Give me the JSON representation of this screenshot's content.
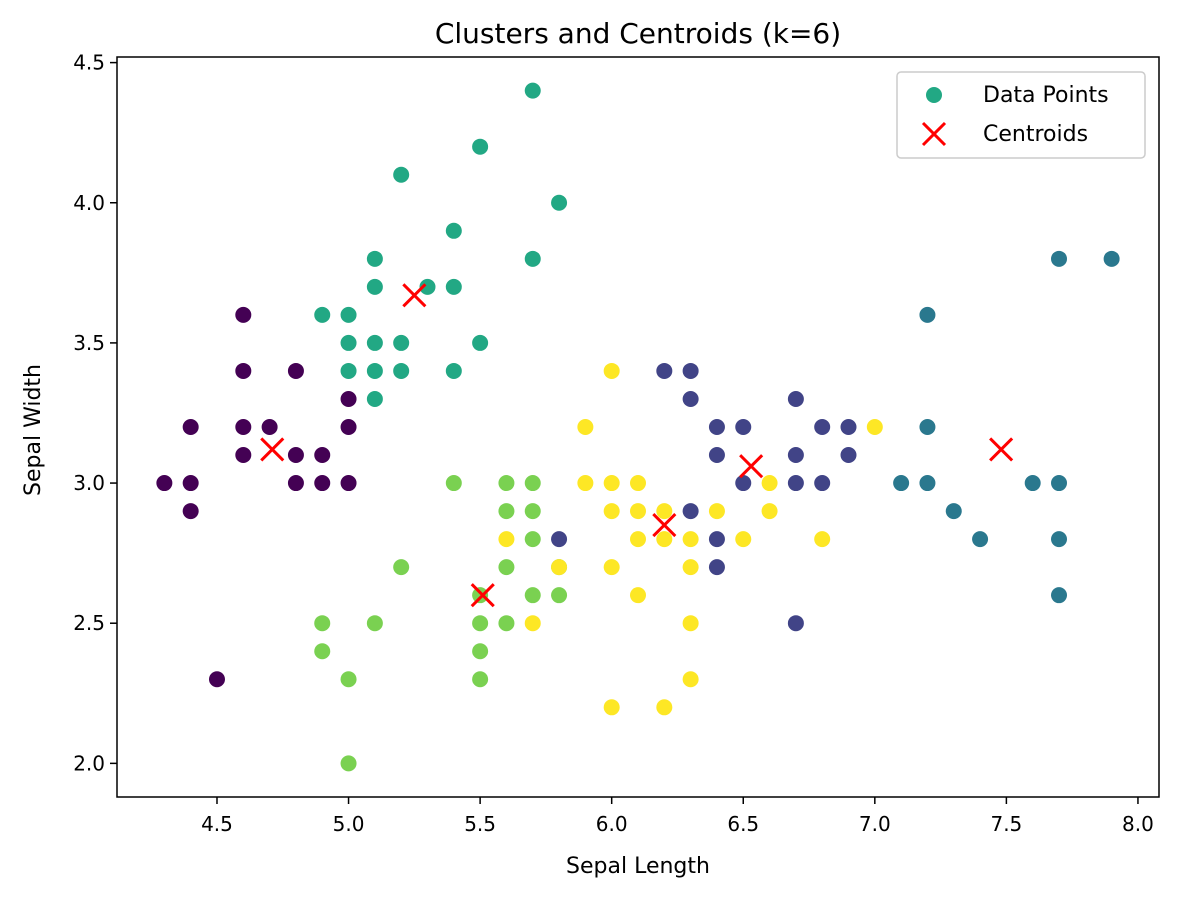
{
  "chart_data": {
    "type": "scatter",
    "title": "Clusters and Centroids (k=6)",
    "xlabel": "Sepal Length",
    "ylabel": "Sepal Width",
    "xlim": [
      4.12,
      8.08
    ],
    "ylim": [
      1.88,
      4.52
    ],
    "xticks": [
      "4.5",
      "5.0",
      "5.5",
      "6.0",
      "6.5",
      "7.0",
      "7.5",
      "8.0"
    ],
    "yticks": [
      "2.0",
      "2.5",
      "3.0",
      "3.5",
      "4.0",
      "4.5"
    ],
    "grid": false,
    "legend_position": "top-right",
    "legend": [
      "Data Points",
      "Centroids"
    ],
    "legend_marker_color": "#22a884",
    "cluster_colors": [
      "#440154",
      "#414487",
      "#2a788e",
      "#22a884",
      "#7ad151",
      "#fde725"
    ],
    "centroid_color": "#ff0000",
    "clusters": [
      {
        "points": [
          [
            4.3,
            3.0
          ],
          [
            4.4,
            3.2
          ],
          [
            4.4,
            3.0
          ],
          [
            4.4,
            2.9
          ],
          [
            4.5,
            2.3
          ],
          [
            4.6,
            3.6
          ],
          [
            4.6,
            3.4
          ],
          [
            4.6,
            3.2
          ],
          [
            4.6,
            3.1
          ],
          [
            4.7,
            3.2
          ],
          [
            4.8,
            3.4
          ],
          [
            4.8,
            3.1
          ],
          [
            4.8,
            3.0
          ],
          [
            4.9,
            3.1
          ],
          [
            4.9,
            3.0
          ],
          [
            5.0,
            3.3
          ],
          [
            5.0,
            3.2
          ],
          [
            5.0,
            3.0
          ]
        ]
      },
      {
        "points": [
          [
            5.8,
            2.8
          ],
          [
            6.2,
            3.4
          ],
          [
            6.3,
            3.4
          ],
          [
            6.3,
            3.3
          ],
          [
            6.3,
            2.9
          ],
          [
            6.4,
            3.2
          ],
          [
            6.4,
            3.1
          ],
          [
            6.4,
            2.8
          ],
          [
            6.4,
            2.7
          ],
          [
            6.5,
            3.2
          ],
          [
            6.5,
            3.0
          ],
          [
            6.7,
            3.3
          ],
          [
            6.7,
            3.1
          ],
          [
            6.7,
            3.0
          ],
          [
            6.7,
            2.5
          ],
          [
            6.8,
            3.2
          ],
          [
            6.8,
            3.0
          ],
          [
            6.9,
            3.2
          ],
          [
            6.9,
            3.1
          ]
        ]
      },
      {
        "points": [
          [
            7.1,
            3.0
          ],
          [
            7.2,
            3.6
          ],
          [
            7.2,
            3.2
          ],
          [
            7.2,
            3.0
          ],
          [
            7.3,
            2.9
          ],
          [
            7.4,
            2.8
          ],
          [
            7.6,
            3.0
          ],
          [
            7.7,
            3.8
          ],
          [
            7.7,
            3.0
          ],
          [
            7.7,
            2.8
          ],
          [
            7.7,
            2.6
          ],
          [
            7.9,
            3.8
          ]
        ]
      },
      {
        "points": [
          [
            4.9,
            3.6
          ],
          [
            5.0,
            3.6
          ],
          [
            5.0,
            3.5
          ],
          [
            5.0,
            3.4
          ],
          [
            5.1,
            3.8
          ],
          [
            5.1,
            3.7
          ],
          [
            5.1,
            3.5
          ],
          [
            5.1,
            3.4
          ],
          [
            5.1,
            3.3
          ],
          [
            5.2,
            4.1
          ],
          [
            5.2,
            3.5
          ],
          [
            5.2,
            3.4
          ],
          [
            5.3,
            3.7
          ],
          [
            5.4,
            3.9
          ],
          [
            5.4,
            3.7
          ],
          [
            5.4,
            3.4
          ],
          [
            5.5,
            4.2
          ],
          [
            5.5,
            3.5
          ],
          [
            5.7,
            4.4
          ],
          [
            5.7,
            3.8
          ],
          [
            5.8,
            4.0
          ]
        ]
      },
      {
        "points": [
          [
            4.9,
            2.5
          ],
          [
            4.9,
            2.4
          ],
          [
            5.0,
            2.3
          ],
          [
            5.0,
            2.0
          ],
          [
            5.1,
            2.5
          ],
          [
            5.2,
            2.7
          ],
          [
            5.4,
            3.0
          ],
          [
            5.5,
            2.6
          ],
          [
            5.5,
            2.5
          ],
          [
            5.5,
            2.4
          ],
          [
            5.5,
            2.3
          ],
          [
            5.6,
            3.0
          ],
          [
            5.6,
            2.9
          ],
          [
            5.6,
            2.7
          ],
          [
            5.6,
            2.5
          ],
          [
            5.7,
            3.0
          ],
          [
            5.7,
            2.9
          ],
          [
            5.7,
            2.8
          ],
          [
            5.7,
            2.6
          ],
          [
            5.8,
            2.7
          ],
          [
            5.8,
            2.6
          ]
        ]
      },
      {
        "points": [
          [
            5.6,
            2.8
          ],
          [
            5.7,
            2.5
          ],
          [
            5.8,
            2.7
          ],
          [
            5.9,
            3.2
          ],
          [
            5.9,
            3.0
          ],
          [
            6.0,
            3.4
          ],
          [
            6.0,
            3.0
          ],
          [
            6.0,
            2.9
          ],
          [
            6.0,
            2.7
          ],
          [
            6.0,
            2.2
          ],
          [
            6.1,
            3.0
          ],
          [
            6.1,
            2.9
          ],
          [
            6.1,
            2.8
          ],
          [
            6.1,
            2.6
          ],
          [
            6.2,
            2.9
          ],
          [
            6.2,
            2.8
          ],
          [
            6.2,
            2.2
          ],
          [
            6.3,
            2.8
          ],
          [
            6.3,
            2.7
          ],
          [
            6.3,
            2.5
          ],
          [
            6.3,
            2.3
          ],
          [
            6.4,
            2.9
          ],
          [
            6.5,
            2.8
          ],
          [
            6.6,
            3.0
          ],
          [
            6.6,
            2.9
          ],
          [
            6.8,
            2.8
          ],
          [
            7.0,
            3.2
          ]
        ]
      }
    ],
    "centroids": [
      [
        4.71,
        3.12
      ],
      [
        6.53,
        3.06
      ],
      [
        7.48,
        3.12
      ],
      [
        5.25,
        3.67
      ],
      [
        5.51,
        2.6
      ],
      [
        6.2,
        2.85
      ]
    ]
  }
}
